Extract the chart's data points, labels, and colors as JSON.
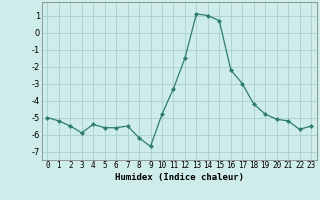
{
  "x": [
    0,
    1,
    2,
    3,
    4,
    5,
    6,
    7,
    8,
    9,
    10,
    11,
    12,
    13,
    14,
    15,
    16,
    17,
    18,
    19,
    20,
    21,
    22,
    23
  ],
  "y": [
    -5.0,
    -5.2,
    -5.5,
    -5.9,
    -5.4,
    -5.6,
    -5.6,
    -5.5,
    -6.2,
    -6.7,
    -4.8,
    -3.3,
    -1.5,
    1.1,
    1.0,
    0.7,
    -2.2,
    -3.0,
    -4.2,
    -4.8,
    -5.1,
    -5.2,
    -5.7,
    -5.5
  ],
  "line_color": "#2e7d6e",
  "marker": "D",
  "marker_size": 2.0,
  "bg_color": "#ceecea",
  "grid_color": "#aacfcc",
  "xlabel": "Humidex (Indice chaleur)",
  "xlabel_fontsize": 6.5,
  "ylabel_ticks": [
    1,
    0,
    -1,
    -2,
    -3,
    -4,
    -5,
    -6,
    -7
  ],
  "ylim": [
    -7.5,
    1.8
  ],
  "xlim": [
    -0.5,
    23.5
  ],
  "tick_fontsize": 5.5
}
